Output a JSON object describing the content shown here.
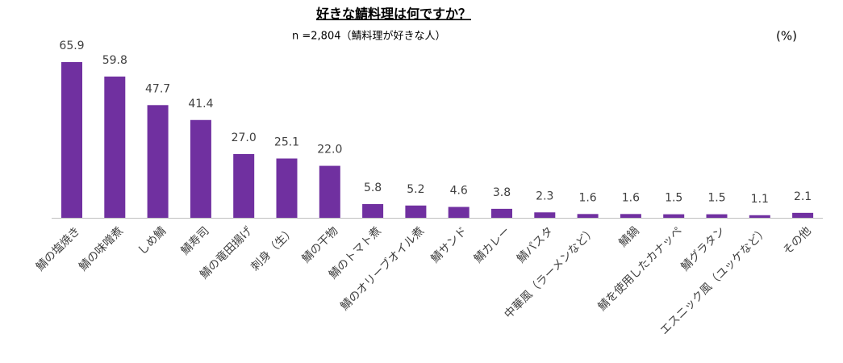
{
  "chart_data": {
    "type": "bar",
    "title": "好きな鯖料理は何ですか？",
    "subtitle": "n =2,804（鯖料理が好きな人）",
    "unit": "(%)",
    "categories": [
      "鯖の塩焼き",
      "鯖の味噌煮",
      "しめ鯖",
      "鯖寿司",
      "鯖の竜田揚げ",
      "刺身（生）",
      "鯖の干物",
      "鯖のトマト煮",
      "鯖のオリーブオイル煮",
      "鯖サンド",
      "鯖カレー",
      "鯖パスタ",
      "中華風（ラーメンなど）",
      "鯖鍋",
      "鯖を使用したカナッペ",
      "鯖グラタン",
      "エスニック風（ユッケなど）",
      "その他"
    ],
    "values": [
      65.9,
      59.8,
      47.7,
      41.4,
      27.0,
      25.1,
      22.0,
      5.8,
      5.2,
      4.6,
      3.8,
      2.3,
      1.6,
      1.6,
      1.5,
      1.5,
      1.1,
      2.1
    ],
    "value_labels": [
      "65.9",
      "59.8",
      "47.7",
      "41.4",
      "27.0",
      "25.1",
      "22.0",
      "5.8",
      "5.2",
      "4.6",
      "3.8",
      "2.3",
      "1.6",
      "1.6",
      "1.5",
      "1.5",
      "1.1",
      "2.1"
    ],
    "color": "#7030a0"
  }
}
